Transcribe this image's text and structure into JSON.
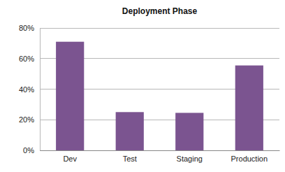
{
  "chart_data": {
    "type": "bar",
    "title": "Deployment Phase",
    "categories": [
      "Dev",
      "Test",
      "Staging",
      "Production"
    ],
    "values": [
      71,
      25,
      24.5,
      55.5
    ],
    "color": "#7b5490",
    "ylim": [
      0,
      80
    ],
    "yticks": [
      {
        "value": 0,
        "label": "0%"
      },
      {
        "value": 20,
        "label": "20%"
      },
      {
        "value": 40,
        "label": "40%"
      },
      {
        "value": 60,
        "label": "60%"
      },
      {
        "value": 80,
        "label": "80%"
      }
    ],
    "grid": true
  }
}
